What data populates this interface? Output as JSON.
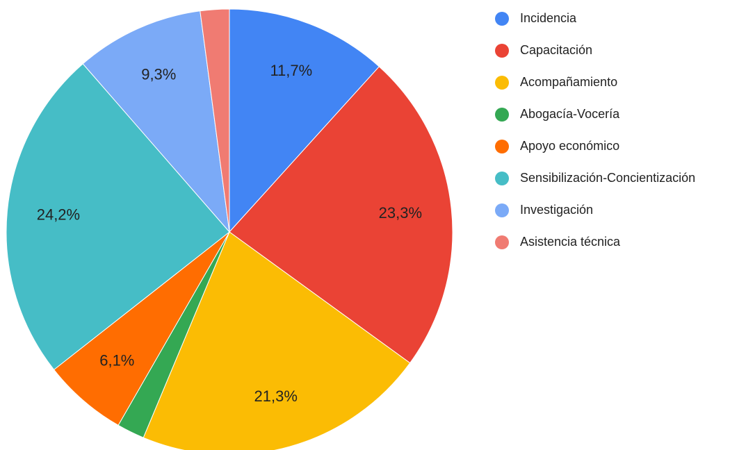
{
  "chart_data": {
    "type": "pie",
    "categories": [
      "Incidencia",
      "Capacitación",
      "Acompañamiento",
      "Abogacía-Vocería",
      "Apoyo económico",
      "Sensibilización-Concientización",
      "Investigación",
      "Asistencia técnica"
    ],
    "values": [
      11.7,
      23.3,
      21.3,
      2.0,
      6.1,
      24.2,
      9.3,
      2.1
    ],
    "value_labels": [
      "11,7%",
      "23,3%",
      "21,3%",
      null,
      "6,1%",
      "24,2%",
      "9,3%",
      null
    ],
    "colors": [
      "#4285f4",
      "#ea4335",
      "#fbbc04",
      "#34a853",
      "#ff6d01",
      "#46bdc6",
      "#7baaf7",
      "#f07b72"
    ],
    "legend": "right"
  }
}
